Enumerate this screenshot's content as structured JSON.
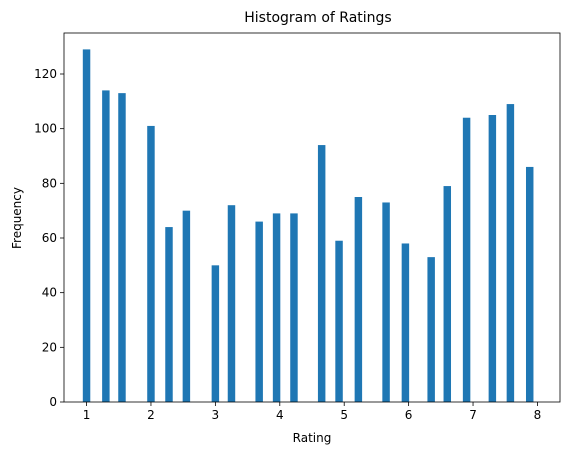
{
  "chart_data": {
    "type": "bar",
    "title": "Histogram of Ratings",
    "xlabel": "Rating",
    "ylabel": "Frequency",
    "xlim": [
      0.65,
      8.35
    ],
    "ylim": [
      0,
      135
    ],
    "xticks": [
      1,
      2,
      3,
      4,
      5,
      6,
      7,
      8
    ],
    "yticks": [
      0,
      20,
      40,
      60,
      80,
      100,
      120
    ],
    "grid": false,
    "bar_color": "#1f77b4",
    "bar_width": 0.116,
    "series": [
      {
        "x": [
          1.0,
          1.3,
          1.55,
          2.0,
          2.28,
          2.55,
          3.0,
          3.25,
          3.68,
          3.95,
          4.22,
          4.65,
          4.92,
          5.22,
          5.65,
          5.95,
          6.35,
          6.6,
          6.9,
          7.3,
          7.58,
          7.88
        ],
        "values": [
          129,
          114,
          113,
          101,
          64,
          70,
          50,
          72,
          66,
          69,
          69,
          94,
          59,
          75,
          73,
          58,
          53,
          79,
          104,
          105,
          109,
          86
        ]
      }
    ]
  }
}
